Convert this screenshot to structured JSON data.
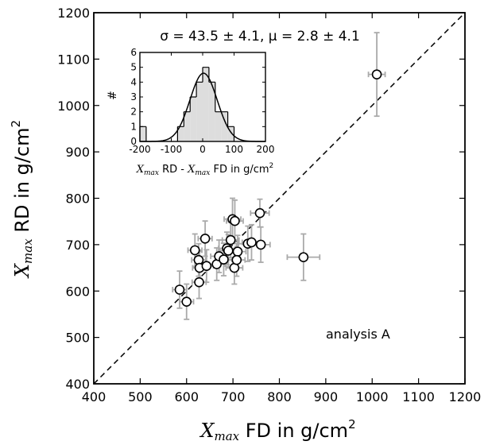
{
  "chart_data": [
    {
      "type": "scatter",
      "xlabel": {
        "var": "X",
        "sub": "max",
        "text": " FD in g/cm",
        "sup": "2"
      },
      "ylabel": {
        "var": "X",
        "sub": "max",
        "text": " RD in g/cm",
        "sup": "2"
      },
      "xlim": [
        400,
        1200
      ],
      "ylim": [
        400,
        1200
      ],
      "xticks": [
        "400",
        "500",
        "600",
        "700",
        "800",
        "900",
        "1000",
        "1100",
        "1200"
      ],
      "yticks": [
        "400",
        "500",
        "600",
        "700",
        "800",
        "900",
        "1000",
        "1100",
        "1200"
      ],
      "grid": false,
      "reference_line": "dashed diagonal y = x",
      "annotation": "analysis A",
      "point_color": "#ffffff",
      "errorbar_color": "#aaaaaa",
      "points": [
        {
          "x": 585,
          "y": 603,
          "ex": 15,
          "ey": 40
        },
        {
          "x": 600,
          "y": 577,
          "ex": 15,
          "ey": 38
        },
        {
          "x": 618,
          "y": 688,
          "ex": 15,
          "ey": 35
        },
        {
          "x": 626,
          "y": 667,
          "ex": 15,
          "ey": 35
        },
        {
          "x": 628,
          "y": 650,
          "ex": 15,
          "ey": 35
        },
        {
          "x": 627,
          "y": 619,
          "ex": 15,
          "ey": 35
        },
        {
          "x": 640,
          "y": 713,
          "ex": 15,
          "ey": 38
        },
        {
          "x": 643,
          "y": 654,
          "ex": 15,
          "ey": 35
        },
        {
          "x": 665,
          "y": 658,
          "ex": 18,
          "ey": 35
        },
        {
          "x": 670,
          "y": 675,
          "ex": 18,
          "ey": 35
        },
        {
          "x": 680,
          "y": 668,
          "ex": 18,
          "ey": 35
        },
        {
          "x": 687,
          "y": 692,
          "ex": 18,
          "ey": 35
        },
        {
          "x": 690,
          "y": 687,
          "ex": 18,
          "ey": 35
        },
        {
          "x": 695,
          "y": 710,
          "ex": 18,
          "ey": 38
        },
        {
          "x": 699,
          "y": 755,
          "ex": 18,
          "ey": 45
        },
        {
          "x": 704,
          "y": 751,
          "ex": 18,
          "ey": 45
        },
        {
          "x": 703,
          "y": 650,
          "ex": 18,
          "ey": 35
        },
        {
          "x": 710,
          "y": 685,
          "ex": 18,
          "ey": 35
        },
        {
          "x": 708,
          "y": 667,
          "ex": 18,
          "ey": 35
        },
        {
          "x": 732,
          "y": 702,
          "ex": 20,
          "ey": 38
        },
        {
          "x": 740,
          "y": 705,
          "ex": 20,
          "ey": 38
        },
        {
          "x": 758,
          "y": 768,
          "ex": 20,
          "ey": 30
        },
        {
          "x": 760,
          "y": 700,
          "ex": 20,
          "ey": 38
        },
        {
          "x": 852,
          "y": 673,
          "ex": 35,
          "ey": 50
        },
        {
          "x": 1010,
          "y": 1067,
          "ex": 18,
          "ey": 90
        }
      ]
    },
    {
      "type": "histogram",
      "title": "σ = 43.5 ± 4.1, μ = 2.8 ± 4.1",
      "xlabel": {
        "var1": "X",
        "sub1": "max",
        "text1": " RD - ",
        "var2": "X",
        "sub2": "max",
        "text2": " FD  in g/cm",
        "sup": "2"
      },
      "ylabel": "#",
      "xlim": [
        -200,
        200
      ],
      "ylim": [
        0,
        6
      ],
      "xticks": [
        "-200",
        "-100",
        "0",
        "100",
        "200"
      ],
      "yticks": [
        "0",
        "1",
        "2",
        "3",
        "4",
        "5",
        "6"
      ],
      "bin_width": 20,
      "bins_start": [
        -200,
        -180,
        -160,
        -140,
        -120,
        -100,
        -80,
        -60,
        -40,
        -20,
        0,
        20,
        40,
        60,
        80,
        100,
        120,
        140,
        160,
        180
      ],
      "counts": [
        1,
        0,
        0,
        0,
        0,
        0,
        1,
        2,
        3,
        4,
        5,
        4,
        2,
        2,
        1,
        0,
        0,
        0,
        0,
        0
      ],
      "fit": {
        "type": "gaussian",
        "mu": 2.8,
        "sigma": 43.5,
        "peak": 4.6
      },
      "bar_color": "#dddddd"
    }
  ]
}
